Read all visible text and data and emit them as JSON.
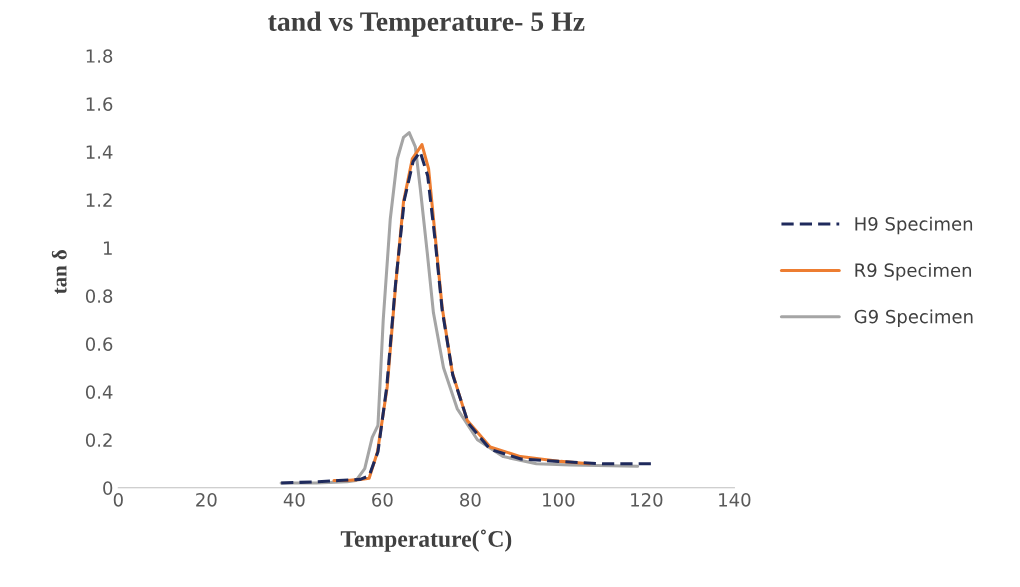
{
  "chart_data": {
    "type": "line",
    "title": "tand vs Temperature- 5 Hz",
    "xlabel": "Temperature(˚C)",
    "ylabel": "tan δ",
    "xlim": [
      0,
      140
    ],
    "xticks": [
      0,
      20,
      40,
      60,
      80,
      100,
      120,
      140
    ],
    "ylim": [
      0,
      1.8
    ],
    "yticks": [
      0,
      0.2,
      0.4,
      0.6,
      0.8,
      1,
      1.2,
      1.4,
      1.6,
      1.8
    ],
    "grid": false,
    "legend": "right",
    "marker": "none",
    "series": [
      {
        "name": "H9 Specimen",
        "color": "#1f2a5c",
        "line_style": "dashed",
        "x": [
          37,
          45,
          50,
          55,
          57,
          59,
          61,
          63,
          65,
          67,
          68.6,
          70.3,
          72,
          73.6,
          76,
          79.5,
          84.5,
          91.5,
          100,
          110,
          122
        ],
        "values": [
          0.02,
          0.025,
          0.03,
          0.035,
          0.05,
          0.15,
          0.42,
          0.85,
          1.2,
          1.36,
          1.4,
          1.3,
          1.03,
          0.74,
          0.47,
          0.27,
          0.16,
          0.12,
          0.11,
          0.1,
          0.1
        ]
      },
      {
        "name": "R9 Specimen",
        "color": "#ed7d31",
        "line_style": "solid",
        "x": [
          49,
          52,
          55,
          57,
          58.9,
          61.1,
          63,
          64.8,
          66.8,
          69,
          70.5,
          72,
          73.6,
          75.9,
          79.3,
          84.5,
          91.4,
          100.5,
          107
        ],
        "values": [
          0.03,
          0.03,
          0.035,
          0.04,
          0.15,
          0.42,
          0.84,
          1.19,
          1.37,
          1.43,
          1.33,
          1.05,
          0.75,
          0.48,
          0.28,
          0.17,
          0.13,
          0.11,
          0.1
        ]
      },
      {
        "name": "G9 Specimen",
        "color": "#a5a5a5",
        "line_style": "solid",
        "x": [
          37,
          45,
          52,
          54,
          56,
          57.7,
          59,
          60.2,
          61.8,
          63.4,
          64.8,
          66.1,
          67.5,
          68.6,
          70.2,
          71.6,
          73.9,
          77,
          81.6,
          87.5,
          95,
          102.7,
          118
        ],
        "values": [
          0.02,
          0.02,
          0.025,
          0.03,
          0.08,
          0.21,
          0.26,
          0.7,
          1.12,
          1.37,
          1.46,
          1.48,
          1.42,
          1.25,
          0.98,
          0.73,
          0.5,
          0.33,
          0.2,
          0.13,
          0.1,
          0.095,
          0.09
        ]
      }
    ]
  }
}
